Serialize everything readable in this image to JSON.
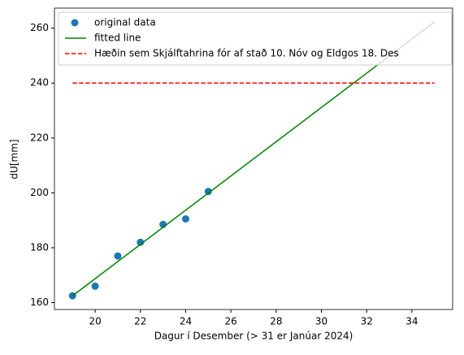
{
  "chart_data": {
    "type": "line",
    "xlabel": "Dagur í Desember (> 31 er Janúar 2024)",
    "ylabel": "dU[mm]",
    "xlim": [
      18.2,
      35.8
    ],
    "xticks": [
      20,
      22,
      24,
      26,
      28,
      30,
      32,
      34
    ],
    "ylim": [
      157.5,
      267.3
    ],
    "yticks": [
      160,
      180,
      200,
      220,
      240,
      260
    ],
    "legend": "upper left",
    "series": [
      {
        "name": "original data",
        "color": "#1f77b4",
        "style": "marker",
        "x": [
          19,
          20,
          21,
          22,
          23,
          24,
          25
        ],
        "values": [
          162.5,
          166,
          177,
          182,
          188.5,
          190.5,
          200.5
        ]
      },
      {
        "name": "fitted line",
        "color": "#008000",
        "style": "solid",
        "x": [
          19,
          35
        ],
        "values": [
          162.5,
          262.3
        ]
      },
      {
        "name": "Hæðin sem Skjálftahrina fór af stað 10. Nóv og Eldgos 18. Des",
        "color": "#ff0000",
        "style": "dashed",
        "x": [
          19,
          35
        ],
        "values": [
          240,
          240
        ]
      }
    ]
  }
}
